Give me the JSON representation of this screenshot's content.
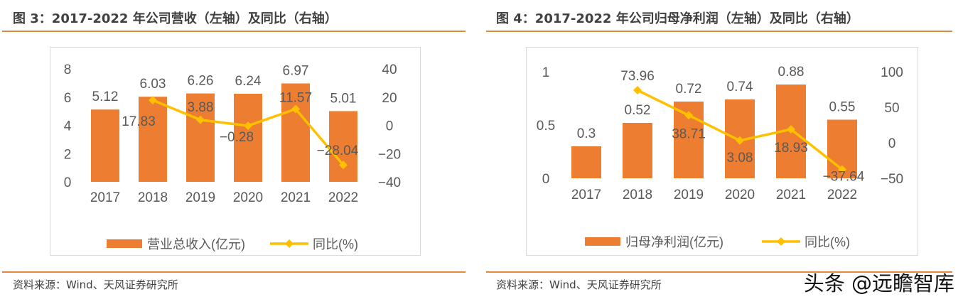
{
  "titles": [
    "图 3：2017-2022 年公司营收（左轴）及同比（右轴）",
    "图 4：2017-2022 年公司归母净利润（左轴）及同比（右轴）"
  ],
  "source": "资料来源：Wind、天风证券研究所",
  "watermark": "头条 @远瞻智库",
  "colors": {
    "bar": "#ed7d31",
    "line": "#ffc000",
    "rule": "#e08a3c"
  },
  "chart_data": [
    {
      "type": "bar+line",
      "categories": [
        "2017",
        "2018",
        "2019",
        "2020",
        "2021",
        "2022"
      ],
      "series": [
        {
          "name": "营业总收入(亿元)",
          "type": "bar",
          "axis": "left",
          "values": [
            5.12,
            6.03,
            6.26,
            6.24,
            6.97,
            5.01
          ]
        },
        {
          "name": "同比(%)",
          "type": "line",
          "axis": "right",
          "values": [
            null,
            17.83,
            3.88,
            -0.28,
            11.57,
            -28.04
          ]
        }
      ],
      "left_ticks": [
        "0",
        "2",
        "4",
        "6",
        "8"
      ],
      "left_ylim": [
        0,
        8
      ],
      "right_ticks": [
        "-40",
        "-20",
        "0",
        "20",
        "40"
      ],
      "right_ylim": [
        -40,
        40
      ],
      "data_labels": {
        "bar": [
          "5.12",
          "6.03",
          "6.26",
          "6.24",
          "6.97",
          "5.01"
        ],
        "line": [
          "",
          "17.83",
          "3.88",
          "−0.28",
          "11.57",
          "−28.04"
        ]
      },
      "legend": "bottom",
      "grid": false
    },
    {
      "type": "bar+line",
      "categories": [
        "2017",
        "2018",
        "2019",
        "2020",
        "2021",
        "2022"
      ],
      "series": [
        {
          "name": "归母净利润(亿元)",
          "type": "bar",
          "axis": "left",
          "values": [
            0.3,
            0.52,
            0.72,
            0.74,
            0.88,
            0.55
          ]
        },
        {
          "name": "同比(%)",
          "type": "line",
          "axis": "right",
          "values": [
            null,
            73.96,
            38.71,
            3.08,
            18.93,
            -37.64
          ]
        }
      ],
      "left_ticks": [
        "0",
        "0.5",
        "1"
      ],
      "left_ylim": [
        0,
        1
      ],
      "right_ticks": [
        "-50",
        "0",
        "50",
        "100"
      ],
      "right_ylim": [
        -50,
        100
      ],
      "data_labels": {
        "bar": [
          "0.3",
          "0.52",
          "0.72",
          "0.74",
          "0.88",
          "0.55"
        ],
        "line": [
          "",
          "73.96",
          "38.71",
          "3.08",
          "18.93",
          "−37.64"
        ]
      },
      "legend": "bottom",
      "grid": false
    }
  ]
}
